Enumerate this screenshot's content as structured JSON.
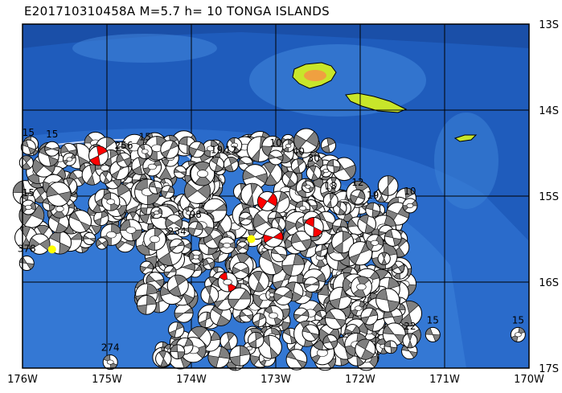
{
  "title": "E201710310458A  M=5.7  h=  10 TONGA ISLANDS",
  "extent": {
    "lon": [
      -176,
      -170
    ],
    "lat": [
      -17,
      -13
    ]
  },
  "x_ticks": [
    {
      "lon": -176,
      "label": "176W"
    },
    {
      "lon": -175,
      "label": "175W"
    },
    {
      "lon": -174,
      "label": "174W"
    },
    {
      "lon": -173,
      "label": "173W"
    },
    {
      "lon": -172,
      "label": "172W"
    },
    {
      "lon": -171,
      "label": "171W"
    },
    {
      "lon": -170,
      "label": "170W"
    }
  ],
  "y_ticks": [
    {
      "lat": -13,
      "label": "13S"
    },
    {
      "lat": -14,
      "label": "14S"
    },
    {
      "lat": -15,
      "label": "15S"
    },
    {
      "lat": -16,
      "label": "16S"
    },
    {
      "lat": -17,
      "label": "17S"
    }
  ],
  "colors": {
    "ocean_deep": "#1d57b8",
    "ocean_shallow": "#3f86dc",
    "land": "#c8e62a",
    "land_high": "#f0a040",
    "mechanism_fill": "#808080",
    "highlight_fill": "#ff0000",
    "event_marker": "#ffff00",
    "grid": "#000000"
  },
  "labeled_events": [
    {
      "lon": -175.93,
      "lat": -14.3,
      "depth": "15"
    },
    {
      "lon": -175.65,
      "lat": -14.32,
      "depth": "15"
    },
    {
      "lon": -174.55,
      "lat": -14.35,
      "depth": "15"
    },
    {
      "lon": -174.8,
      "lat": -14.45,
      "depth": "256"
    },
    {
      "lon": -173.53,
      "lat": -14.5,
      "depth": "12"
    },
    {
      "lon": -173.7,
      "lat": -14.5,
      "depth": "19"
    },
    {
      "lon": -173.0,
      "lat": -14.42,
      "depth": "10"
    },
    {
      "lon": -172.73,
      "lat": -14.52,
      "depth": "40"
    },
    {
      "lon": -172.55,
      "lat": -14.6,
      "depth": "30"
    },
    {
      "lon": -172.35,
      "lat": -14.92,
      "depth": "18"
    },
    {
      "lon": -172.03,
      "lat": -14.88,
      "depth": "12"
    },
    {
      "lon": -171.85,
      "lat": -15.03,
      "depth": "19"
    },
    {
      "lon": -171.41,
      "lat": -14.98,
      "depth": "10"
    },
    {
      "lon": -175.93,
      "lat": -15.0,
      "depth": "15"
    },
    {
      "lon": -173.95,
      "lat": -15.25,
      "depth": "98"
    },
    {
      "lon": -174.17,
      "lat": -15.45,
      "depth": "234"
    },
    {
      "lon": -175.95,
      "lat": -15.65,
      "depth": "378"
    },
    {
      "lon": -171.14,
      "lat": -16.48,
      "depth": "15"
    },
    {
      "lon": -171.41,
      "lat": -16.55,
      "depth": "22"
    },
    {
      "lon": -170.13,
      "lat": -16.48,
      "depth": "15"
    },
    {
      "lon": -174.96,
      "lat": -16.8,
      "depth": "274"
    }
  ],
  "highlighted_events": [
    {
      "lon": -175.1,
      "lat": -14.53
    },
    {
      "lon": -173.1,
      "lat": -15.06
    },
    {
      "lon": -173.03,
      "lat": -15.48
    },
    {
      "lon": -172.55,
      "lat": -15.36
    },
    {
      "lon": -173.57,
      "lat": -16.0
    }
  ],
  "epicenters": [
    {
      "lon": -173.29,
      "lat": -15.5
    },
    {
      "lon": -175.65,
      "lat": -15.62
    }
  ]
}
